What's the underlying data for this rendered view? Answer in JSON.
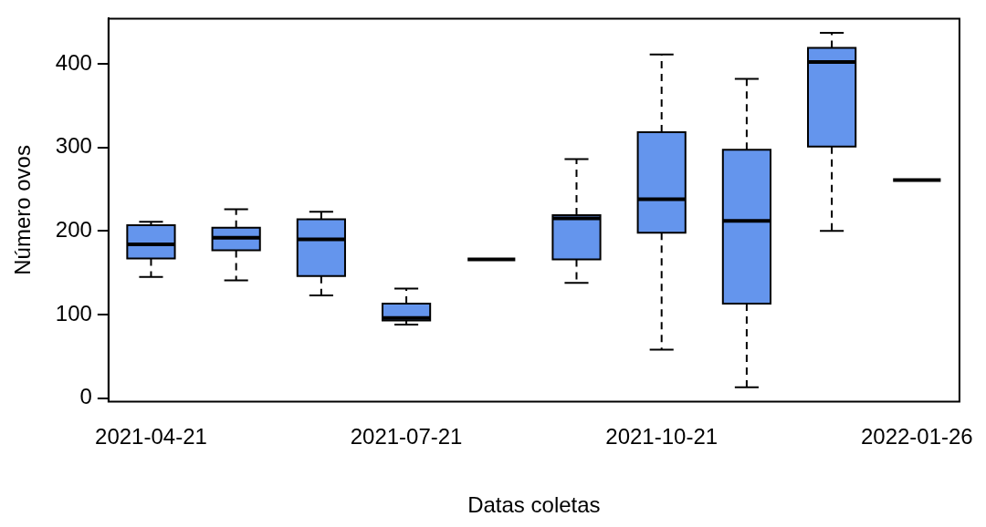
{
  "chart_data": {
    "type": "box",
    "xlabel": "Datas coletas",
    "ylabel": "Número ovos",
    "categories": [
      "2021-04-21",
      null,
      null,
      "2021-07-21",
      null,
      null,
      "2021-10-21",
      null,
      null,
      "2022-01-26"
    ],
    "colors": [
      "#6495ed",
      "#6495ed",
      "#6495ed",
      "#6495ed",
      "#000000",
      "#6495ed",
      "#6495ed",
      "#6495ed",
      "#6495ed",
      "#000000"
    ],
    "ylim": [
      -4,
      454
    ],
    "yticks": [
      0,
      100,
      200,
      300,
      400
    ],
    "grid": false,
    "legend": false,
    "boxes": [
      {
        "low": 145,
        "q1": 167,
        "median": 184,
        "q3": 207,
        "high": 211
      },
      {
        "low": 141,
        "q1": 177,
        "median": 192,
        "q3": 204,
        "high": 226
      },
      {
        "low": 123,
        "q1": 146,
        "median": 190,
        "q3": 214,
        "high": 223
      },
      {
        "low": 88,
        "q1": 93,
        "median": 96,
        "q3": 113,
        "high": 131
      },
      {
        "low": 166,
        "q1": 166,
        "median": 166,
        "q3": 166,
        "high": 166
      },
      {
        "low": 138,
        "q1": 166,
        "median": 215,
        "q3": 219,
        "high": 286
      },
      {
        "low": 58,
        "q1": 198,
        "median": 238,
        "q3": 318,
        "high": 411
      },
      {
        "low": 13,
        "q1": 113,
        "median": 212,
        "q3": 297,
        "high": 382
      },
      {
        "low": 200,
        "q1": 301,
        "median": 402,
        "q3": 419,
        "high": 437
      },
      {
        "low": 261,
        "q1": 261,
        "median": 261,
        "q3": 261,
        "high": 261
      }
    ]
  }
}
